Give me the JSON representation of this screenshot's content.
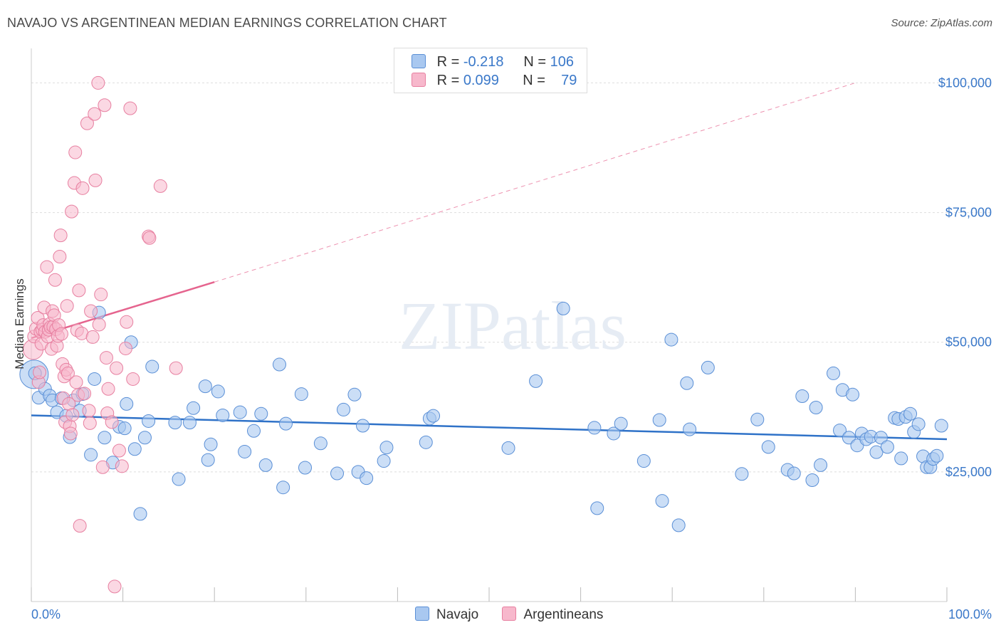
{
  "title": "NAVAJO VS ARGENTINEAN MEDIAN EARNINGS CORRELATION CHART",
  "source": "Source: ZipAtlas.com",
  "watermark": "ZIPatlas",
  "colors": {
    "navajo_fill": "#a9c8f0",
    "navajo_stroke": "#5a8fd6",
    "navajo_line": "#2f72c8",
    "arg_fill": "#f7b8cc",
    "arg_stroke": "#e77fa0",
    "arg_line": "#e5648e",
    "tick_text": "#3a78c9",
    "grid": "#dddddd"
  },
  "legend": {
    "rows": [
      {
        "r_label": "R =",
        "r_value": "-0.218",
        "n_label": "N =",
        "n_value": "106",
        "color": "#a9c8f0"
      },
      {
        "r_label": "R =",
        "r_value": "0.099",
        "n_label": "N =",
        "n_value": "79",
        "color": "#f7b8cc"
      }
    ]
  },
  "chart_data": {
    "type": "scatter",
    "xlabel": "",
    "ylabel": "Median Earnings",
    "xlim": [
      0,
      100
    ],
    "ylim": [
      0,
      105000
    ],
    "x_tick_labels": [
      "0.0%",
      "100.0%"
    ],
    "y_ticks": [
      25000,
      50000,
      75000,
      100000
    ],
    "y_tick_labels": [
      "$25,000",
      "$50,000",
      "$75,000",
      "$100,000"
    ],
    "grid": true,
    "legend_position": "bottom",
    "series": [
      {
        "name": "Navajo",
        "trend": {
          "x": [
            0,
            100
          ],
          "y": [
            35900,
            31300
          ],
          "dashed_from": null
        },
        "points": [
          [
            0.3,
            43800
          ],
          [
            0.4,
            44000
          ],
          [
            0.8,
            39300
          ],
          [
            1.5,
            41000
          ],
          [
            2,
            39700
          ],
          [
            2.3,
            38800
          ],
          [
            2.8,
            36500
          ],
          [
            3.3,
            39200
          ],
          [
            3.8,
            35800
          ],
          [
            4.2,
            31700
          ],
          [
            4.6,
            38800
          ],
          [
            5.3,
            36800
          ],
          [
            5.6,
            40000
          ],
          [
            6.5,
            28300
          ],
          [
            6.9,
            42900
          ],
          [
            7.4,
            55700
          ],
          [
            8,
            31600
          ],
          [
            8.9,
            26800
          ],
          [
            9.6,
            33700
          ],
          [
            10.2,
            33400
          ],
          [
            10.4,
            38100
          ],
          [
            10.9,
            50000
          ],
          [
            11.3,
            29400
          ],
          [
            11.9,
            16900
          ],
          [
            12.4,
            31600
          ],
          [
            12.8,
            34800
          ],
          [
            13.2,
            45300
          ],
          [
            15.7,
            34500
          ],
          [
            16.1,
            23600
          ],
          [
            17.3,
            34500
          ],
          [
            17.7,
            37300
          ],
          [
            19,
            41500
          ],
          [
            19.3,
            27300
          ],
          [
            19.6,
            30300
          ],
          [
            20.4,
            40500
          ],
          [
            20.9,
            35900
          ],
          [
            22.8,
            36500
          ],
          [
            23.3,
            28900
          ],
          [
            24.3,
            32900
          ],
          [
            25.1,
            36200
          ],
          [
            25.6,
            26300
          ],
          [
            27.1,
            45700
          ],
          [
            27.5,
            22000
          ],
          [
            27.8,
            34300
          ],
          [
            29.5,
            40000
          ],
          [
            29.9,
            25800
          ],
          [
            31.6,
            30500
          ],
          [
            33.4,
            24700
          ],
          [
            34.1,
            37000
          ],
          [
            35.3,
            39900
          ],
          [
            35.7,
            25000
          ],
          [
            36.2,
            33900
          ],
          [
            36.6,
            23800
          ],
          [
            38.5,
            27100
          ],
          [
            38.8,
            29700
          ],
          [
            43.1,
            30700
          ],
          [
            43.5,
            35300
          ],
          [
            43.9,
            35800
          ],
          [
            52.1,
            29600
          ],
          [
            55.1,
            42500
          ],
          [
            58.1,
            56500
          ],
          [
            61.5,
            33500
          ],
          [
            61.8,
            18000
          ],
          [
            63.6,
            32400
          ],
          [
            64.4,
            34300
          ],
          [
            66.9,
            27100
          ],
          [
            68.6,
            35000
          ],
          [
            68.9,
            19400
          ],
          [
            69.9,
            50500
          ],
          [
            70.7,
            14700
          ],
          [
            71.6,
            42100
          ],
          [
            71.9,
            33200
          ],
          [
            73.9,
            45100
          ],
          [
            77.6,
            24600
          ],
          [
            79.3,
            35100
          ],
          [
            80.5,
            29800
          ],
          [
            82.6,
            25400
          ],
          [
            83.3,
            24700
          ],
          [
            84.2,
            39600
          ],
          [
            85.3,
            23400
          ],
          [
            85.7,
            37400
          ],
          [
            86.2,
            26300
          ],
          [
            87.6,
            44000
          ],
          [
            88.3,
            33000
          ],
          [
            88.6,
            40800
          ],
          [
            89.3,
            31600
          ],
          [
            89.7,
            39900
          ],
          [
            90.2,
            30100
          ],
          [
            90.7,
            32400
          ],
          [
            91.2,
            31300
          ],
          [
            91.7,
            31800
          ],
          [
            92.3,
            28800
          ],
          [
            92.8,
            31600
          ],
          [
            93.5,
            29800
          ],
          [
            94.3,
            35400
          ],
          [
            94.7,
            35200
          ],
          [
            95,
            27600
          ],
          [
            95.5,
            35600
          ],
          [
            96,
            36200
          ],
          [
            96.4,
            32700
          ],
          [
            96.9,
            34200
          ],
          [
            97.4,
            28000
          ],
          [
            97.8,
            25900
          ],
          [
            98.2,
            25900
          ],
          [
            98.5,
            27500
          ],
          [
            98.9,
            28100
          ],
          [
            99.4,
            33900
          ]
        ]
      },
      {
        "name": "Argentineans",
        "trend": {
          "x": [
            0,
            20,
            90
          ],
          "y": [
            50800,
            61600,
            100000
          ],
          "dashed_from": 20
        },
        "points": [
          [
            0.2,
            48600
          ],
          [
            0.3,
            51100
          ],
          [
            0.5,
            52600
          ],
          [
            0.7,
            54700
          ],
          [
            0.8,
            42300
          ],
          [
            0.9,
            44200
          ],
          [
            1,
            52000
          ],
          [
            1.1,
            49700
          ],
          [
            1.2,
            52400
          ],
          [
            1.3,
            53300
          ],
          [
            1.4,
            56700
          ],
          [
            1.5,
            52000
          ],
          [
            1.7,
            64500
          ],
          [
            1.8,
            51100
          ],
          [
            1.9,
            52400
          ],
          [
            2,
            53500
          ],
          [
            2.1,
            52900
          ],
          [
            2.2,
            48700
          ],
          [
            2.3,
            56000
          ],
          [
            2.4,
            53000
          ],
          [
            2.5,
            55200
          ],
          [
            2.6,
            62000
          ],
          [
            2.7,
            52500
          ],
          [
            2.8,
            49300
          ],
          [
            2.9,
            51200
          ],
          [
            3,
            53300
          ],
          [
            3.1,
            66500
          ],
          [
            3.2,
            70600
          ],
          [
            3.3,
            51600
          ],
          [
            3.4,
            45800
          ],
          [
            3.5,
            39200
          ],
          [
            3.6,
            43400
          ],
          [
            3.7,
            34600
          ],
          [
            3.8,
            44700
          ],
          [
            3.9,
            57000
          ],
          [
            4,
            44000
          ],
          [
            4.1,
            38100
          ],
          [
            4.2,
            33800
          ],
          [
            4.3,
            32400
          ],
          [
            4.4,
            75200
          ],
          [
            4.5,
            36000
          ],
          [
            4.7,
            80700
          ],
          [
            4.8,
            86600
          ],
          [
            4.9,
            42300
          ],
          [
            5,
            52300
          ],
          [
            5.1,
            39800
          ],
          [
            5.2,
            60000
          ],
          [
            5.3,
            14600
          ],
          [
            5.5,
            51700
          ],
          [
            5.6,
            79700
          ],
          [
            5.8,
            40100
          ],
          [
            6.1,
            92200
          ],
          [
            6.3,
            36800
          ],
          [
            6.4,
            34400
          ],
          [
            6.5,
            56000
          ],
          [
            6.7,
            51000
          ],
          [
            6.9,
            94000
          ],
          [
            7,
            81200
          ],
          [
            7.3,
            100000
          ],
          [
            7.4,
            53400
          ],
          [
            7.6,
            59200
          ],
          [
            7.8,
            25900
          ],
          [
            8,
            95700
          ],
          [
            8.2,
            47000
          ],
          [
            8.3,
            36300
          ],
          [
            8.4,
            41000
          ],
          [
            8.8,
            34600
          ],
          [
            9.1,
            2900
          ],
          [
            9.3,
            45000
          ],
          [
            9.6,
            29100
          ],
          [
            9.9,
            26100
          ],
          [
            10.3,
            48800
          ],
          [
            10.4,
            53900
          ],
          [
            10.8,
            95100
          ],
          [
            11.1,
            42900
          ],
          [
            12.8,
            70400
          ],
          [
            12.9,
            70100
          ],
          [
            14.1,
            80100
          ],
          [
            15.8,
            45000
          ]
        ]
      }
    ]
  }
}
